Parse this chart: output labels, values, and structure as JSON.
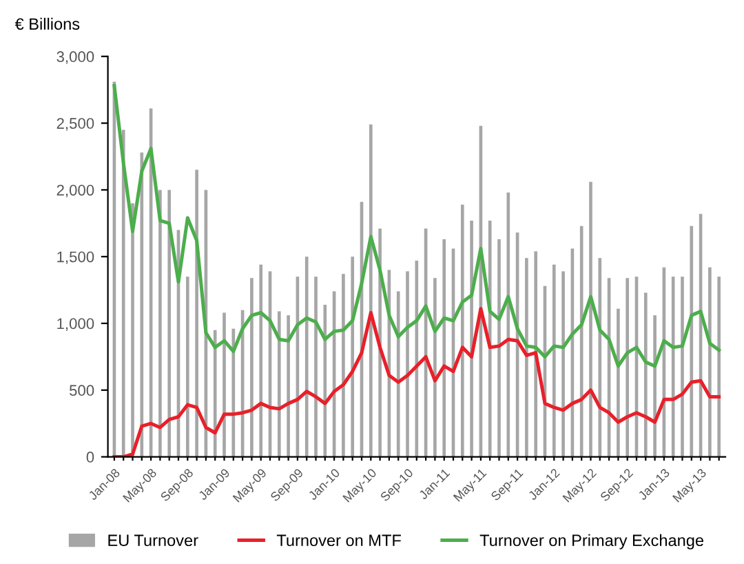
{
  "chart_data": {
    "type": "bar",
    "ylabel": "€ Billions",
    "categories": [
      "Jan-08",
      null,
      null,
      null,
      "May-08",
      null,
      null,
      null,
      "Sep-08",
      null,
      null,
      null,
      "Jan-09",
      null,
      null,
      null,
      "May-09",
      null,
      null,
      null,
      "Sep-09",
      null,
      null,
      null,
      "Jan-10",
      null,
      null,
      null,
      "May-10",
      null,
      null,
      null,
      "Sep-10",
      null,
      null,
      null,
      "Jan-11",
      null,
      null,
      null,
      "May-11",
      null,
      null,
      null,
      "Sep-11",
      null,
      null,
      null,
      "Jan-12",
      null,
      null,
      null,
      "May-12",
      null,
      null,
      null,
      "Sep-12",
      null,
      null,
      null,
      "Jan-13",
      null,
      null,
      null,
      "May-13",
      null,
      null
    ],
    "series": [
      {
        "name": "EU Turnover",
        "color": "#a6a6a6",
        "values": [
          2810,
          2450,
          1900,
          2280,
          2610,
          2000,
          2000,
          1700,
          1350,
          2150,
          2000,
          950,
          1080,
          960,
          1100,
          1340,
          1440,
          1390,
          1090,
          1060,
          1350,
          1500,
          1350,
          1140,
          1240,
          1370,
          1500,
          1910,
          2490,
          1710,
          1400,
          1240,
          1390,
          1470,
          1710,
          1340,
          1630,
          1560,
          1890,
          1770,
          2480,
          1770,
          1630,
          1980,
          1680,
          1490,
          1540,
          1280,
          1440,
          1390,
          1560,
          1730,
          2060,
          1490,
          1340,
          1110,
          1340,
          1350,
          1230,
          1060,
          1420,
          1350,
          1350,
          1730,
          1820,
          1420,
          1350
        ]
      },
      {
        "name": "Turnover on MTF",
        "type": "line",
        "color": "#e8202a",
        "values": [
          0,
          0,
          20,
          230,
          250,
          220,
          280,
          300,
          390,
          370,
          220,
          180,
          320,
          320,
          330,
          350,
          400,
          370,
          360,
          400,
          430,
          490,
          450,
          400,
          490,
          540,
          640,
          780,
          1080,
          820,
          610,
          560,
          610,
          680,
          750,
          570,
          680,
          640,
          820,
          750,
          1110,
          820,
          830,
          880,
          870,
          760,
          780,
          400,
          370,
          350,
          400,
          430,
          500,
          370,
          330,
          260,
          300,
          330,
          300,
          260,
          430,
          430,
          470,
          560,
          570,
          450,
          450
        ]
      },
      {
        "name": "Turnover on Primary Exchange",
        "type": "line",
        "color": "#4cae4c",
        "values": [
          2780,
          2200,
          1690,
          2140,
          2310,
          1770,
          1750,
          1310,
          1790,
          1620,
          930,
          820,
          870,
          790,
          960,
          1060,
          1080,
          1020,
          880,
          870,
          990,
          1040,
          1010,
          880,
          940,
          950,
          1020,
          1300,
          1650,
          1400,
          1060,
          900,
          970,
          1020,
          1130,
          940,
          1040,
          1020,
          1160,
          1210,
          1560,
          1090,
          1030,
          1200,
          960,
          830,
          820,
          750,
          830,
          820,
          920,
          990,
          1200,
          950,
          880,
          680,
          780,
          820,
          710,
          680,
          870,
          820,
          830,
          1060,
          1090,
          850,
          800
        ]
      }
    ],
    "ylim": [
      0,
      3000
    ],
    "yticks": [
      {
        "value": 0,
        "label": "0"
      },
      {
        "value": 500,
        "label": "500"
      },
      {
        "value": 1000,
        "label": "1,000"
      },
      {
        "value": 1500,
        "label": "1,500"
      },
      {
        "value": 2000,
        "label": "2,000"
      },
      {
        "value": 2500,
        "label": "2,500"
      },
      {
        "value": 3000,
        "label": "3,000"
      }
    ],
    "grid": false,
    "legend": "bottom"
  }
}
